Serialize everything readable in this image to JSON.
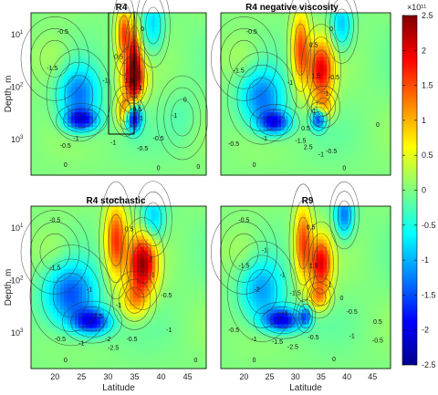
{
  "chart_data": {
    "type": "heatmap",
    "colorbar": {
      "min": -2.5,
      "max": 2.5,
      "ticks": [
        "2.5",
        "2",
        "1.5",
        "1",
        "0.5",
        "0",
        "-0.5",
        "-1",
        "-1.5",
        "-2",
        "-2.5"
      ],
      "exponent": "×10¹¹",
      "colormap": "jet",
      "stops": [
        "#00008f",
        "#0000ff",
        "#0080ff",
        "#00ffff",
        "#80ff80",
        "#ffff00",
        "#ff8000",
        "#ff0000",
        "#800000"
      ]
    },
    "xlabel": "Latitude",
    "ylabel": "Depth, m",
    "x_ticks": [
      "20",
      "25",
      "30",
      "35",
      "40",
      "45"
    ],
    "x_tick_values": [
      20,
      25,
      30,
      35,
      40,
      45
    ],
    "x_range": [
      15.5,
      48.5
    ],
    "y_ticks": [
      {
        "base": "10",
        "exp": "1",
        "value": 10
      },
      {
        "base": "10",
        "exp": "2",
        "value": 100
      },
      {
        "base": "10",
        "exp": "3",
        "value": 1000
      }
    ],
    "y_scale": "log",
    "y_range": [
      4,
      5000
    ],
    "panels": [
      {
        "title": "R4",
        "blobs": [
          {
            "x": 24.5,
            "y": 150,
            "rx": 3.8,
            "ry": 0.55,
            "v": -1.3
          },
          {
            "x": 25,
            "y": 450,
            "rx": 3,
            "ry": 0.2,
            "v": -1.7
          },
          {
            "x": 35,
            "y": 35,
            "rx": 1.2,
            "ry": 0.6,
            "v": 1.8
          },
          {
            "x": 34.8,
            "y": 75,
            "rx": 2.3,
            "ry": 0.4,
            "v": 1.6
          },
          {
            "x": 34.7,
            "y": 400,
            "rx": 1.5,
            "ry": 0.25,
            "v": -2.4
          },
          {
            "x": 33.3,
            "y": 300,
            "rx": 1.6,
            "ry": 0.3,
            "v": 1.4
          },
          {
            "x": 33,
            "y": 10,
            "rx": 1.4,
            "ry": 0.5,
            "v": 1.5
          },
          {
            "x": 38.5,
            "y": 7,
            "rx": 2,
            "ry": 0.5,
            "v": -0.8
          },
          {
            "x": 20,
            "y": 30,
            "rx": 4,
            "ry": 0.5,
            "v": 0.3
          },
          {
            "x": 44,
            "y": 400,
            "rx": 3,
            "ry": 0.5,
            "v": -0.2
          }
        ],
        "contour_labels": [
          {
            "x": 21.5,
            "y": 10,
            "t": "-0.5"
          },
          {
            "x": 19.5,
            "y": 50,
            "t": "-1.5"
          },
          {
            "x": 29.5,
            "y": 85,
            "t": "-1"
          },
          {
            "x": 32,
            "y": 30,
            "t": "0.5"
          },
          {
            "x": 36.5,
            "y": 9,
            "t": "0"
          },
          {
            "x": 36,
            "y": 120,
            "t": "-1"
          },
          {
            "x": 36.3,
            "y": 450,
            "t": "1"
          },
          {
            "x": 39.5,
            "y": 1100,
            "t": "-0.5"
          },
          {
            "x": 42.5,
            "y": 400,
            "t": "-1"
          },
          {
            "x": 44.5,
            "y": 200,
            "t": "0"
          },
          {
            "x": 24,
            "y": 1100,
            "t": "-1"
          },
          {
            "x": 22,
            "y": 1500,
            "t": "-0.5"
          },
          {
            "x": 31,
            "y": 1300,
            "t": "-1"
          },
          {
            "x": 36.5,
            "y": 1700,
            "t": "-0.5"
          },
          {
            "x": 22,
            "y": 3500,
            "t": "0"
          },
          {
            "x": 39.5,
            "y": 4000,
            "t": "0"
          },
          {
            "x": 47,
            "y": 3800,
            "t": "0"
          },
          {
            "x": 34,
            "y": 85,
            "t": "1.5"
          },
          {
            "x": 35.5,
            "y": 300,
            "t": "0.5"
          }
        ]
      },
      {
        "title": "R4 negative viscosity",
        "blobs": [
          {
            "x": 23.5,
            "y": 170,
            "rx": 4.2,
            "ry": 0.55,
            "v": -1.3
          },
          {
            "x": 26,
            "y": 500,
            "rx": 3,
            "ry": 0.22,
            "v": -1.7
          },
          {
            "x": 35,
            "y": 50,
            "rx": 2.4,
            "ry": 0.55,
            "v": 1.9
          },
          {
            "x": 35.5,
            "y": 250,
            "rx": 2,
            "ry": 0.25,
            "v": 0.9
          },
          {
            "x": 31,
            "y": 20,
            "rx": 1.7,
            "ry": 0.7,
            "v": 1.5
          },
          {
            "x": 34.5,
            "y": 420,
            "rx": 1.4,
            "ry": 0.2,
            "v": -1.8
          },
          {
            "x": 39,
            "y": 7,
            "rx": 2,
            "ry": 0.45,
            "v": -0.9
          },
          {
            "x": 20,
            "y": 30,
            "rx": 4,
            "ry": 0.5,
            "v": 0.3
          }
        ],
        "contour_labels": [
          {
            "x": 21.5,
            "y": 10,
            "t": "-0.5"
          },
          {
            "x": 19,
            "y": 55,
            "t": "-1.5"
          },
          {
            "x": 29,
            "y": 95,
            "t": "-1"
          },
          {
            "x": 33.5,
            "y": 18,
            "t": "0.5"
          },
          {
            "x": 37,
            "y": 9,
            "t": "0"
          },
          {
            "x": 34,
            "y": 70,
            "t": "1.5"
          },
          {
            "x": 37.5,
            "y": 75,
            "t": "-0.5"
          },
          {
            "x": 36,
            "y": 150,
            "t": "-1"
          },
          {
            "x": 33.5,
            "y": 330,
            "t": "-1"
          },
          {
            "x": 32,
            "y": 700,
            "t": "0.5"
          },
          {
            "x": 31,
            "y": 1200,
            "t": "-1.5"
          },
          {
            "x": 32.5,
            "y": 1600,
            "t": "2.5"
          },
          {
            "x": 35,
            "y": 2200,
            "t": "-1"
          },
          {
            "x": 37,
            "y": 1900,
            "t": "-0.5"
          },
          {
            "x": 24,
            "y": 1100,
            "t": "-1"
          },
          {
            "x": 18,
            "y": 1400,
            "t": "-0.5"
          },
          {
            "x": 46,
            "y": 600,
            "t": "0"
          },
          {
            "x": 22,
            "y": 3500,
            "t": "0"
          },
          {
            "x": 39.5,
            "y": 4000,
            "t": "0"
          }
        ]
      },
      {
        "title": "R4 stochastic",
        "blobs": [
          {
            "x": 23,
            "y": 200,
            "rx": 4.8,
            "ry": 0.6,
            "v": -1.5
          },
          {
            "x": 27,
            "y": 650,
            "rx": 3.5,
            "ry": 0.25,
            "v": -1.8
          },
          {
            "x": 36.5,
            "y": 50,
            "rx": 2.6,
            "ry": 0.55,
            "v": 2.3
          },
          {
            "x": 31.5,
            "y": 18,
            "rx": 2,
            "ry": 0.7,
            "v": 1.6
          },
          {
            "x": 35,
            "y": 250,
            "rx": 2.6,
            "ry": 0.35,
            "v": 1
          },
          {
            "x": 38.5,
            "y": 7,
            "rx": 2.2,
            "ry": 0.45,
            "v": -0.9
          },
          {
            "x": 20,
            "y": 30,
            "rx": 4,
            "ry": 0.5,
            "v": 0.3
          }
        ],
        "contour_labels": [
          {
            "x": 20,
            "y": 8,
            "t": "-0.5"
          },
          {
            "x": 20,
            "y": 65,
            "t": "-1.5"
          },
          {
            "x": 26.5,
            "y": 170,
            "t": "-1"
          },
          {
            "x": 34,
            "y": 12,
            "t": "0.5"
          },
          {
            "x": 38,
            "y": 45,
            "t": "2"
          },
          {
            "x": 38.5,
            "y": 90,
            "t": "1"
          },
          {
            "x": 32,
            "y": 340,
            "t": "-1"
          },
          {
            "x": 28,
            "y": 550,
            "t": "-1.5"
          },
          {
            "x": 41,
            "y": 220,
            "t": "-0.5"
          },
          {
            "x": 34.5,
            "y": 1500,
            "t": "-0.5"
          },
          {
            "x": 30,
            "y": 1500,
            "t": "-2"
          },
          {
            "x": 31,
            "y": 2200,
            "t": "-2.5"
          },
          {
            "x": 25,
            "y": 1800,
            "t": "-1"
          },
          {
            "x": 21,
            "y": 1500,
            "t": "-0.5"
          },
          {
            "x": 41.5,
            "y": 1000,
            "t": "-1"
          },
          {
            "x": 22,
            "y": 3800,
            "t": "0"
          },
          {
            "x": 46.5,
            "y": 3800,
            "t": "0"
          }
        ]
      },
      {
        "title": "R9",
        "blobs": [
          {
            "x": 23.5,
            "y": 170,
            "rx": 4.2,
            "ry": 0.6,
            "v": -1.1
          },
          {
            "x": 27.5,
            "y": 600,
            "rx": 3.5,
            "ry": 0.22,
            "v": -2
          },
          {
            "x": 35,
            "y": 50,
            "rx": 2.1,
            "ry": 0.5,
            "v": 1.9
          },
          {
            "x": 31.5,
            "y": 20,
            "rx": 1.7,
            "ry": 0.7,
            "v": 1.5
          },
          {
            "x": 34.5,
            "y": 220,
            "rx": 2,
            "ry": 0.25,
            "v": 1
          },
          {
            "x": 32,
            "y": 500,
            "rx": 1.2,
            "ry": 0.2,
            "v": -1.2
          },
          {
            "x": 39.5,
            "y": 6,
            "rx": 1.8,
            "ry": 0.4,
            "v": -1.3
          },
          {
            "x": 20,
            "y": 30,
            "rx": 4,
            "ry": 0.5,
            "v": 0.3
          }
        ],
        "contour_labels": [
          {
            "x": 20,
            "y": 8,
            "t": "-0.5"
          },
          {
            "x": 20,
            "y": 60,
            "t": "-1.5"
          },
          {
            "x": 24,
            "y": 30,
            "t": "-1"
          },
          {
            "x": 22.5,
            "y": 170,
            "t": "-2"
          },
          {
            "x": 27.5,
            "y": 90,
            "t": "-1"
          },
          {
            "x": 33,
            "y": 11,
            "t": "0.5"
          },
          {
            "x": 33.5,
            "y": 60,
            "t": "1.5"
          },
          {
            "x": 36.5,
            "y": 140,
            "t": "-1"
          },
          {
            "x": 30,
            "y": 200,
            "t": "-1.5"
          },
          {
            "x": 28,
            "y": 480,
            "t": "-1"
          },
          {
            "x": 39,
            "y": 250,
            "t": "0"
          },
          {
            "x": 41,
            "y": 450,
            "t": "-0.5"
          },
          {
            "x": 18,
            "y": 1000,
            "t": "-0.5"
          },
          {
            "x": 22,
            "y": 1500,
            "t": "-1"
          },
          {
            "x": 26.5,
            "y": 1700,
            "t": "-1.5"
          },
          {
            "x": 29.5,
            "y": 2100,
            "t": "-2.5"
          },
          {
            "x": 33.5,
            "y": 1400,
            "t": "-0.5"
          },
          {
            "x": 41,
            "y": 1300,
            "t": "-1"
          },
          {
            "x": 46,
            "y": 700,
            "t": "0.5"
          },
          {
            "x": 46,
            "y": 1600,
            "t": "-0.5"
          },
          {
            "x": 22,
            "y": 3800,
            "t": "0"
          },
          {
            "x": 37.5,
            "y": 3600,
            "t": "0"
          }
        ]
      }
    ]
  }
}
